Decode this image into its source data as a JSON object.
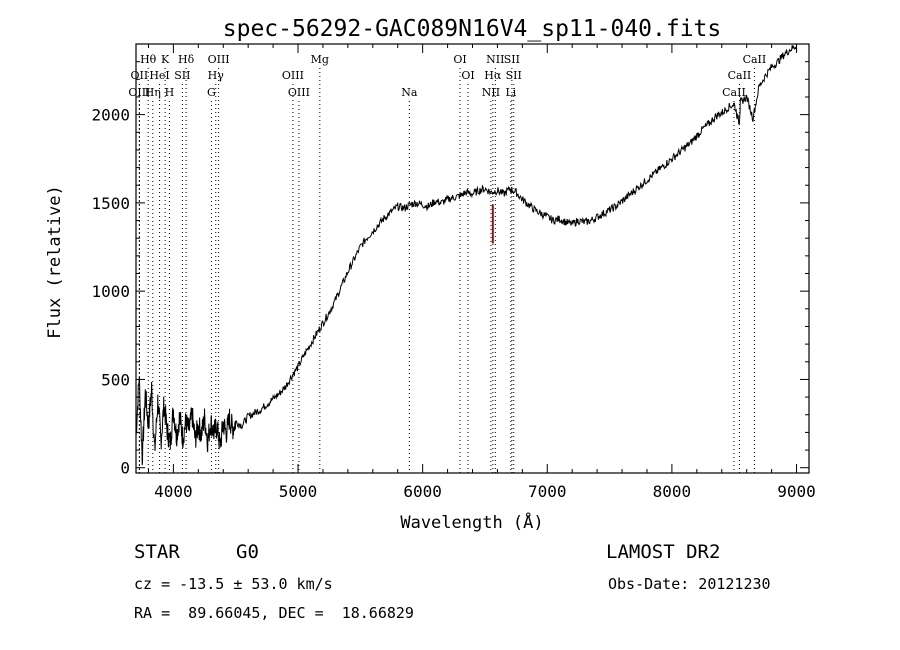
{
  "chart_data": {
    "type": "line",
    "title": "spec-56292-GAC089N16V4_sp11-040.fits",
    "xlabel": "Wavelength (Å)",
    "ylabel": "Flux (relative)",
    "xlim": [
      3700,
      9100
    ],
    "ylim": [
      -30,
      2400
    ],
    "x_ticks": [
      4000,
      5000,
      6000,
      7000,
      8000,
      9000
    ],
    "y_ticks": [
      0,
      500,
      1000,
      1500,
      2000
    ],
    "grid": false,
    "series": [
      {
        "line_color": "#000000",
        "x": [
          3700,
          3725,
          3750,
          3775,
          3800,
          3825,
          3850,
          3875,
          3900,
          3925,
          3950,
          3975,
          4000,
          4025,
          4050,
          4075,
          4100,
          4125,
          4150,
          4175,
          4200,
          4225,
          4250,
          4275,
          4300,
          4325,
          4350,
          4375,
          4400,
          4425,
          4450,
          4475,
          4500,
          4550,
          4600,
          4650,
          4700,
          4750,
          4800,
          4850,
          4900,
          4950,
          5000,
          5050,
          5100,
          5150,
          5200,
          5250,
          5300,
          5350,
          5400,
          5450,
          5500,
          5550,
          5600,
          5650,
          5700,
          5750,
          5800,
          5850,
          5900,
          5950,
          6000,
          6050,
          6100,
          6150,
          6200,
          6250,
          6300,
          6350,
          6400,
          6450,
          6500,
          6550,
          6600,
          6650,
          6700,
          6750,
          6800,
          6850,
          6900,
          6950,
          7000,
          7050,
          7100,
          7150,
          7200,
          7250,
          7300,
          7350,
          7400,
          7450,
          7500,
          7550,
          7600,
          7650,
          7700,
          7750,
          7800,
          7850,
          7900,
          7950,
          8000,
          8050,
          8100,
          8150,
          8200,
          8250,
          8300,
          8350,
          8400,
          8450,
          8500,
          8540,
          8550,
          8600,
          8650,
          8700,
          8750,
          8800,
          8850,
          8900,
          8950,
          9000
        ],
        "y": [
          180,
          520,
          60,
          420,
          240,
          450,
          90,
          380,
          150,
          360,
          210,
          140,
          330,
          180,
          290,
          170,
          260,
          210,
          300,
          160,
          240,
          190,
          280,
          150,
          260,
          200,
          230,
          120,
          250,
          200,
          280,
          220,
          260,
          240,
          290,
          310,
          330,
          360,
          390,
          420,
          460,
          520,
          570,
          640,
          700,
          760,
          820,
          880,
          950,
          1030,
          1110,
          1180,
          1250,
          1300,
          1340,
          1380,
          1420,
          1450,
          1480,
          1470,
          1490,
          1500,
          1490,
          1480,
          1510,
          1500,
          1520,
          1530,
          1540,
          1560,
          1550,
          1570,
          1580,
          1560,
          1570,
          1550,
          1580,
          1560,
          1520,
          1490,
          1460,
          1440,
          1420,
          1400,
          1410,
          1390,
          1380,
          1400,
          1390,
          1400,
          1420,
          1440,
          1460,
          1480,
          1510,
          1540,
          1570,
          1600,
          1630,
          1660,
          1690,
          1720,
          1750,
          1780,
          1810,
          1840,
          1880,
          1920,
          1950,
          1990,
          2010,
          2040,
          2060,
          1950,
          2070,
          2100,
          1980,
          2160,
          2220,
          2270,
          2300,
          2340,
          2370,
          2390
        ]
      }
    ],
    "line_markers": [
      {
        "label": "Hθ",
        "wavelength": 3798,
        "row": 0,
        "color": "#000000"
      },
      {
        "label": "K",
        "wavelength": 3934,
        "row": 0,
        "color": "#000000"
      },
      {
        "label": "Hδ",
        "wavelength": 4102,
        "row": 0,
        "color": "#000000"
      },
      {
        "label": "OIII",
        "wavelength": 4363,
        "row": 0,
        "color": "#000000"
      },
      {
        "label": "Mg",
        "wavelength": 5175,
        "row": 0,
        "color": "#000000"
      },
      {
        "label": "OI",
        "wavelength": 6300,
        "row": 0,
        "color": "#000000"
      },
      {
        "label": "NII",
        "wavelength": 6583,
        "row": 0,
        "color": "#000000"
      },
      {
        "label": "SII",
        "wavelength": 6716,
        "row": 0,
        "color": "#000000"
      },
      {
        "label": "CaII",
        "wavelength": 8662,
        "row": 0,
        "color": "#000000"
      },
      {
        "label": "OII",
        "wavelength": 3727,
        "row": 1,
        "color": "#000000"
      },
      {
        "label": "HeI",
        "wavelength": 3889,
        "row": 1,
        "color": "#000000"
      },
      {
        "label": "SII",
        "wavelength": 4072,
        "row": 1,
        "color": "#000000"
      },
      {
        "label": "Hγ",
        "wavelength": 4340,
        "row": 1,
        "color": "#000000"
      },
      {
        "label": "OIII",
        "wavelength": 4959,
        "row": 1,
        "color": "#000000"
      },
      {
        "label": "OI",
        "wavelength": 6364,
        "row": 1,
        "color": "#000000"
      },
      {
        "label": "Hα",
        "wavelength": 6563,
        "row": 1,
        "color": "#000000"
      },
      {
        "label": "SII",
        "wavelength": 6731,
        "row": 1,
        "color": "#000000"
      },
      {
        "label": "CaII",
        "wavelength": 8542,
        "row": 1,
        "color": "#000000"
      },
      {
        "label": "OIII",
        "wavelength": 3727,
        "row": 2,
        "color": "#000000"
      },
      {
        "label": "Hη",
        "wavelength": 3835,
        "row": 2,
        "color": "#000000"
      },
      {
        "label": "H",
        "wavelength": 3968,
        "row": 2,
        "color": "#000000"
      },
      {
        "label": "G",
        "wavelength": 4305,
        "row": 2,
        "color": "#000000"
      },
      {
        "label": "OIII",
        "wavelength": 5007,
        "row": 2,
        "color": "#000000"
      },
      {
        "label": "Na",
        "wavelength": 5893,
        "row": 2,
        "color": "#000000"
      },
      {
        "label": "NII",
        "wavelength": 6548,
        "row": 2,
        "color": "#000000"
      },
      {
        "label": "Li",
        "wavelength": 6708,
        "row": 2,
        "color": "#000000"
      },
      {
        "label": "CaII",
        "wavelength": 8498,
        "row": 2,
        "color": "#000000"
      }
    ],
    "absorption_feature": {
      "wavelength": 6563,
      "y_from": 1490,
      "y_to": 1270,
      "color": "#8b1a1a"
    }
  },
  "info": {
    "object_class": "STAR",
    "subclass": "G0",
    "survey": "LAMOST DR2",
    "redshift": "cz = -13.5 ± 53.0 km/s",
    "obs_date": "Obs-Date: 20121230",
    "coords": "RA =  89.66045, DEC =  18.66829"
  }
}
